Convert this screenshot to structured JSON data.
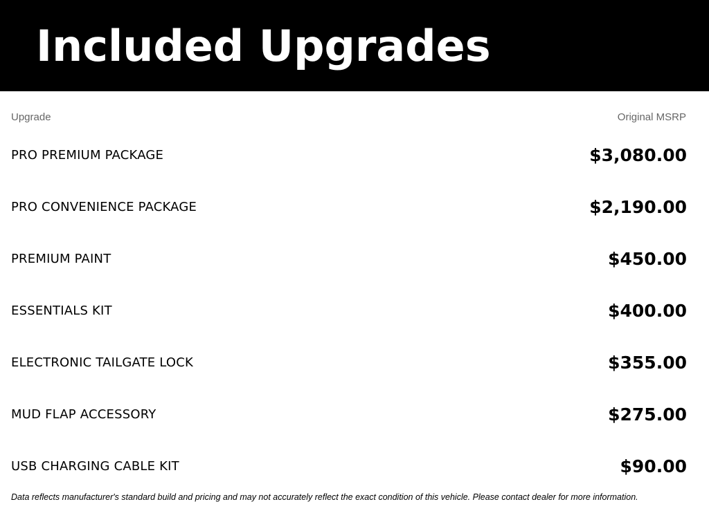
{
  "header": {
    "title": "Included Upgrades"
  },
  "table": {
    "col_upgrade": "Upgrade",
    "col_msrp": "Original MSRP",
    "rows": [
      {
        "name": "PRO PREMIUM PACKAGE",
        "price": "$3,080.00"
      },
      {
        "name": "PRO CONVENIENCE PACKAGE",
        "price": "$2,190.00"
      },
      {
        "name": "PREMIUM PAINT",
        "price": "$450.00"
      },
      {
        "name": "ESSENTIALS KIT",
        "price": "$400.00"
      },
      {
        "name": "ELECTRONIC TAILGATE LOCK",
        "price": "$355.00"
      },
      {
        "name": "MUD FLAP ACCESSORY",
        "price": "$275.00"
      },
      {
        "name": "USB CHARGING CABLE KIT",
        "price": "$90.00"
      }
    ]
  },
  "footer": {
    "disclaimer": "Data reflects manufacturer's standard build and pricing and may not accurately reflect the exact condition of this vehicle. Please contact dealer for more information."
  }
}
